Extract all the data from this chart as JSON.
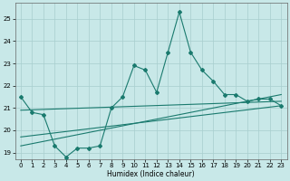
{
  "xlabel": "Humidex (Indice chaleur)",
  "x_values": [
    0,
    1,
    2,
    3,
    4,
    5,
    6,
    7,
    8,
    9,
    10,
    11,
    12,
    13,
    14,
    15,
    16,
    17,
    18,
    19,
    20,
    21,
    22,
    23
  ],
  "main_line": [
    21.5,
    20.8,
    20.7,
    19.3,
    18.8,
    19.2,
    19.2,
    19.3,
    21.0,
    21.5,
    22.9,
    22.7,
    21.7,
    23.5,
    25.3,
    23.5,
    22.7,
    22.2,
    21.6,
    21.6,
    21.3,
    21.4,
    21.4,
    21.1
  ],
  "trend_line1": {
    "x": [
      0,
      23
    ],
    "y": [
      20.9,
      21.3
    ]
  },
  "trend_line2": {
    "x": [
      0,
      23
    ],
    "y": [
      19.7,
      21.1
    ]
  },
  "trend_line3": {
    "x": [
      0,
      23
    ],
    "y": [
      19.3,
      21.6
    ]
  },
  "line_color": "#1a7a6e",
  "background_color": "#c8e8e8",
  "grid_color": "#a8cece",
  "ylim": [
    18.7,
    25.7
  ],
  "yticks": [
    19,
    20,
    21,
    22,
    23,
    24,
    25
  ],
  "xlim": [
    -0.5,
    23.5
  ],
  "xticks": [
    0,
    1,
    2,
    3,
    4,
    5,
    6,
    7,
    8,
    9,
    10,
    11,
    12,
    13,
    14,
    15,
    16,
    17,
    18,
    19,
    20,
    21,
    22,
    23
  ]
}
